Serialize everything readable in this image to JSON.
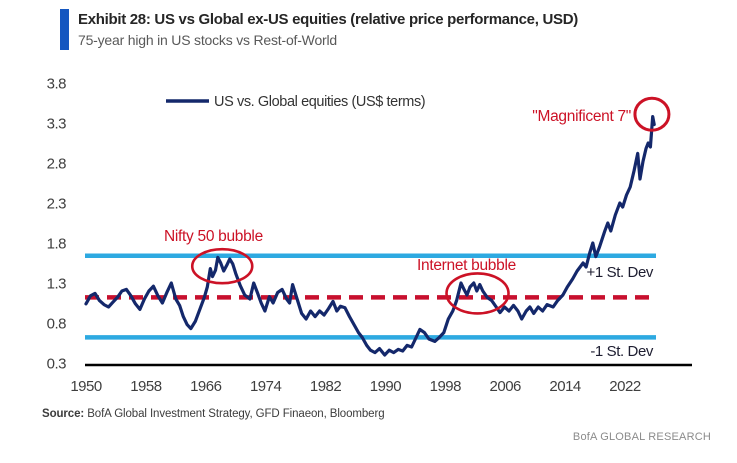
{
  "header": {
    "title": "Exhibit 28: US vs Global ex-US equities (relative price performance, USD)",
    "subtitle": "75-year high in US stocks vs Rest-of-World"
  },
  "legend": {
    "label": "US vs. Global equities (US$ terms)"
  },
  "stat_labels": {
    "plus1": "+1 St. Dev",
    "minus1": "-1 St. Dev"
  },
  "footer": {
    "source_label": "Source:",
    "source_text": " BofA Global Investment Strategy, GFD Finaeon, Bloomberg",
    "brand": "BofA GLOBAL RESEARCH"
  },
  "colors": {
    "line_navy": "#14286B",
    "stdev_blue": "#2DA9E1",
    "mean_red": "#C8102E",
    "annotation_red": "#CC1226",
    "title_bar_blue": "#1557C0"
  },
  "chart_data": {
    "type": "line",
    "title": "US vs Global ex-US equities (relative price performance, USD)",
    "subtitle": "75-year high in US stocks vs Rest-of-World",
    "xlabel": "",
    "ylabel": "",
    "x_ticks": [
      1950,
      1958,
      1966,
      1974,
      1982,
      1990,
      1998,
      2006,
      2014,
      2022
    ],
    "y_ticks": [
      0.3,
      0.8,
      1.3,
      1.8,
      2.3,
      2.8,
      3.3,
      3.8
    ],
    "xlim": [
      1950,
      2026
    ],
    "ylim": [
      0.3,
      3.8
    ],
    "grid": false,
    "legend_position": "top",
    "reference_lines": {
      "mean": 1.12,
      "plus_1_stdev": 1.64,
      "minus_1_stdev": 0.62
    },
    "series": [
      {
        "name": "US vs. Global equities (US$ terms)",
        "points": [
          [
            1950.0,
            1.04
          ],
          [
            1950.6,
            1.14
          ],
          [
            1951.2,
            1.17
          ],
          [
            1951.8,
            1.08
          ],
          [
            1952.4,
            1.03
          ],
          [
            1953.0,
            1.0
          ],
          [
            1953.6,
            1.06
          ],
          [
            1954.2,
            1.12
          ],
          [
            1954.8,
            1.2
          ],
          [
            1955.4,
            1.22
          ],
          [
            1956.0,
            1.14
          ],
          [
            1956.6,
            1.04
          ],
          [
            1957.2,
            0.97
          ],
          [
            1957.8,
            1.1
          ],
          [
            1958.4,
            1.2
          ],
          [
            1959.0,
            1.26
          ],
          [
            1959.6,
            1.14
          ],
          [
            1960.2,
            1.05
          ],
          [
            1960.8,
            1.18
          ],
          [
            1961.4,
            1.3
          ],
          [
            1962.0,
            1.1
          ],
          [
            1962.5,
            1.02
          ],
          [
            1963.0,
            0.88
          ],
          [
            1963.5,
            0.78
          ],
          [
            1964.0,
            0.73
          ],
          [
            1964.6,
            0.82
          ],
          [
            1965.2,
            0.97
          ],
          [
            1965.8,
            1.12
          ],
          [
            1966.2,
            1.25
          ],
          [
            1966.6,
            1.48
          ],
          [
            1966.9,
            1.38
          ],
          [
            1967.3,
            1.46
          ],
          [
            1967.6,
            1.62
          ],
          [
            1968.0,
            1.55
          ],
          [
            1968.4,
            1.45
          ],
          [
            1968.8,
            1.52
          ],
          [
            1969.2,
            1.6
          ],
          [
            1969.6,
            1.54
          ],
          [
            1970.0,
            1.42
          ],
          [
            1970.6,
            1.27
          ],
          [
            1971.2,
            1.15
          ],
          [
            1971.9,
            1.1
          ],
          [
            1972.4,
            1.3
          ],
          [
            1972.9,
            1.18
          ],
          [
            1973.4,
            1.05
          ],
          [
            1973.9,
            0.95
          ],
          [
            1974.5,
            1.13
          ],
          [
            1975.0,
            1.05
          ],
          [
            1975.6,
            1.18
          ],
          [
            1976.2,
            1.22
          ],
          [
            1976.8,
            1.1
          ],
          [
            1977.2,
            1.05
          ],
          [
            1977.6,
            1.28
          ],
          [
            1978.2,
            1.1
          ],
          [
            1978.8,
            0.92
          ],
          [
            1979.4,
            0.85
          ],
          [
            1980.0,
            0.95
          ],
          [
            1980.6,
            0.88
          ],
          [
            1981.2,
            0.95
          ],
          [
            1981.8,
            0.9
          ],
          [
            1982.4,
            0.98
          ],
          [
            1983.0,
            1.07
          ],
          [
            1983.5,
            0.95
          ],
          [
            1984.0,
            1.01
          ],
          [
            1984.6,
            0.99
          ],
          [
            1985.2,
            0.88
          ],
          [
            1985.8,
            0.78
          ],
          [
            1986.4,
            0.68
          ],
          [
            1986.9,
            0.62
          ],
          [
            1987.5,
            0.52
          ],
          [
            1988.0,
            0.46
          ],
          [
            1988.6,
            0.43
          ],
          [
            1989.2,
            0.48
          ],
          [
            1989.9,
            0.4
          ],
          [
            1990.5,
            0.46
          ],
          [
            1991.1,
            0.43
          ],
          [
            1991.7,
            0.47
          ],
          [
            1992.3,
            0.45
          ],
          [
            1992.9,
            0.52
          ],
          [
            1993.5,
            0.5
          ],
          [
            1994.0,
            0.6
          ],
          [
            1994.6,
            0.72
          ],
          [
            1995.2,
            0.68
          ],
          [
            1995.8,
            0.6
          ],
          [
            1996.6,
            0.57
          ],
          [
            1997.2,
            0.62
          ],
          [
            1997.8,
            0.68
          ],
          [
            1998.4,
            0.85
          ],
          [
            1999.0,
            0.95
          ],
          [
            1999.5,
            1.08
          ],
          [
            2000.1,
            1.3
          ],
          [
            2000.5,
            1.22
          ],
          [
            2000.9,
            1.15
          ],
          [
            2001.3,
            1.25
          ],
          [
            2001.8,
            1.3
          ],
          [
            2002.2,
            1.2
          ],
          [
            2002.6,
            1.28
          ],
          [
            2003.0,
            1.2
          ],
          [
            2003.6,
            1.12
          ],
          [
            2004.2,
            1.08
          ],
          [
            2004.8,
            1.0
          ],
          [
            2005.3,
            0.93
          ],
          [
            2005.9,
            1.0
          ],
          [
            2006.5,
            0.95
          ],
          [
            2007.1,
            1.02
          ],
          [
            2007.7,
            0.95
          ],
          [
            2008.2,
            0.85
          ],
          [
            2008.8,
            0.95
          ],
          [
            2009.3,
            1.0
          ],
          [
            2009.8,
            0.92
          ],
          [
            2010.4,
            1.0
          ],
          [
            2011.0,
            0.95
          ],
          [
            2011.6,
            1.03
          ],
          [
            2012.4,
            1.0
          ],
          [
            2013.0,
            1.08
          ],
          [
            2013.7,
            1.15
          ],
          [
            2014.3,
            1.25
          ],
          [
            2015.0,
            1.35
          ],
          [
            2015.6,
            1.45
          ],
          [
            2016.4,
            1.55
          ],
          [
            2016.8,
            1.5
          ],
          [
            2017.3,
            1.68
          ],
          [
            2017.7,
            1.8
          ],
          [
            2018.1,
            1.63
          ],
          [
            2018.6,
            1.75
          ],
          [
            2019.3,
            1.95
          ],
          [
            2019.7,
            2.05
          ],
          [
            2020.1,
            1.95
          ],
          [
            2020.7,
            2.15
          ],
          [
            2021.3,
            2.3
          ],
          [
            2021.7,
            2.25
          ],
          [
            2022.2,
            2.4
          ],
          [
            2022.7,
            2.5
          ],
          [
            2023.2,
            2.7
          ],
          [
            2023.7,
            2.92
          ],
          [
            2024.0,
            2.6
          ],
          [
            2024.4,
            2.82
          ],
          [
            2024.8,
            2.98
          ],
          [
            2025.1,
            3.05
          ],
          [
            2025.4,
            3.0
          ],
          [
            2025.7,
            3.38
          ],
          [
            2025.9,
            3.28
          ]
        ]
      }
    ],
    "annotations": [
      {
        "id": "nifty50",
        "label": "Nifty 50 bubble",
        "x": 1968.2,
        "y": 1.51
      },
      {
        "id": "internet",
        "label": "Internet bubble",
        "x": 2002.3,
        "y": 1.17
      },
      {
        "id": "mag7",
        "label": "\"Magnificent 7\"",
        "x": 2025.6,
        "y": 3.41
      }
    ]
  }
}
